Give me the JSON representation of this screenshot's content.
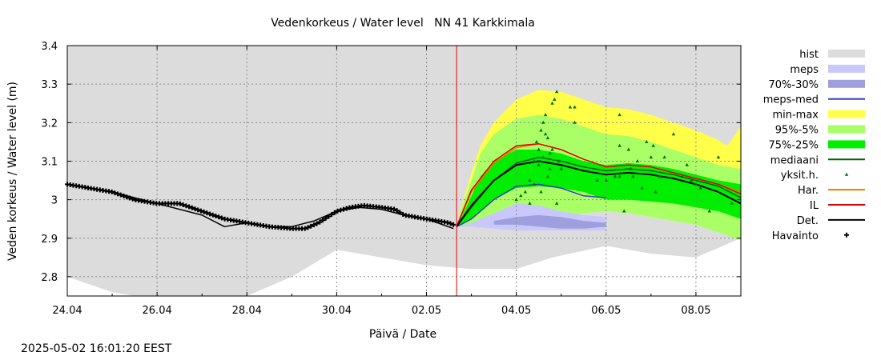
{
  "chart_data": {
    "type": "line",
    "title": "Vedenkorkeus / Water level   NN 41 Karkkimala",
    "xlabel": "Päivä / Date",
    "ylabel": "Veden korkeus / Water level (m)",
    "ylim": [
      2.75,
      3.4
    ],
    "yticks": [
      "2.8",
      "2.9",
      "3",
      "3.1",
      "3.2",
      "3.3",
      "3.4"
    ],
    "xlim": [
      "2025-04-24",
      "2025-05-09"
    ],
    "xticks": [
      "24.04",
      "26.04",
      "28.04",
      "30.04",
      "02.05",
      "04.05",
      "06.05",
      "08.05"
    ],
    "grid": true,
    "legend_position": "right",
    "forecast_start": "2025-05-02 16:00",
    "legend": [
      {
        "key": "hist",
        "label": "hist",
        "color": "#dcdcdc",
        "kind": "box"
      },
      {
        "key": "meps",
        "label": "meps",
        "color": "#c8c8fa",
        "kind": "box"
      },
      {
        "key": "meps7030",
        "label": "70%-30%",
        "color": "#9f9fe0",
        "kind": "box"
      },
      {
        "key": "mepsmed",
        "label": "meps-med",
        "color": "#3a3ac8",
        "kind": "line"
      },
      {
        "key": "minmax",
        "label": "min-max",
        "color": "#ffff4a",
        "kind": "box"
      },
      {
        "key": "p955",
        "label": "95%-5%",
        "color": "#aaff66",
        "kind": "box"
      },
      {
        "key": "p7525",
        "label": "75%-25%",
        "color": "#00ee00",
        "kind": "box"
      },
      {
        "key": "mediaani",
        "label": "mediaani",
        "color": "#006400",
        "kind": "line"
      },
      {
        "key": "yksit",
        "label": "yksit.h.",
        "color": "#007000",
        "kind": "tri"
      },
      {
        "key": "har",
        "label": "Har.",
        "color": "#e67e00",
        "kind": "line"
      },
      {
        "key": "il",
        "label": "IL",
        "color": "#e00000",
        "kind": "line"
      },
      {
        "key": "det",
        "label": "Det.",
        "color": "#000000",
        "kind": "line"
      },
      {
        "key": "havainto",
        "label": "Havainto",
        "color": "#000000",
        "kind": "plus"
      }
    ],
    "series": {
      "hist_lower": {
        "x": [
          0,
          1,
          1.5,
          2.5,
          3,
          4,
          5,
          6,
          6.5,
          7,
          8,
          9,
          10,
          10.8,
          12,
          13,
          14,
          15
        ],
        "y": [
          2.8,
          2.76,
          2.75,
          2.75,
          2.75,
          2.75,
          2.8,
          2.87,
          2.86,
          2.85,
          2.83,
          2.82,
          2.82,
          2.85,
          2.88,
          2.86,
          2.85,
          2.9
        ]
      },
      "observation": {
        "x": [
          0,
          0.5,
          1,
          1.5,
          2,
          2.5,
          3,
          3.5,
          4,
          4.5,
          5,
          5.3,
          5.6,
          6,
          6.3,
          6.6,
          7,
          7.3,
          7.5,
          8,
          8.5,
          8.6
        ],
        "y": [
          3.04,
          3.03,
          3.02,
          3.0,
          2.99,
          2.99,
          2.97,
          2.95,
          2.94,
          2.93,
          2.925,
          2.925,
          2.94,
          2.97,
          2.98,
          2.985,
          2.98,
          2.975,
          2.96,
          2.95,
          2.94,
          2.935
        ]
      },
      "det_hind": {
        "x": [
          0,
          1,
          2,
          3,
          3.5,
          4,
          4.5,
          5,
          5.5,
          6,
          6.5,
          7,
          7.5,
          8,
          8.6
        ],
        "y": [
          3.04,
          3.02,
          2.99,
          2.96,
          2.93,
          2.94,
          2.93,
          2.93,
          2.945,
          2.97,
          2.98,
          2.975,
          2.96,
          2.95,
          2.925
        ]
      },
      "minmax": {
        "x": [
          8.67,
          8.8,
          9,
          9.2,
          9.5,
          10,
          10.5,
          11,
          11.5,
          12,
          12.5,
          13,
          13.5,
          14,
          14.5,
          14.7,
          15
        ],
        "upper": [
          2.93,
          2.99,
          3.07,
          3.14,
          3.2,
          3.26,
          3.285,
          3.28,
          3.26,
          3.24,
          3.235,
          3.22,
          3.2,
          3.18,
          3.155,
          3.14,
          3.19
        ],
        "lower": [
          2.93,
          2.93,
          2.93,
          2.93,
          2.935,
          2.945,
          2.945,
          2.955,
          2.965,
          2.97,
          2.965,
          2.955,
          2.945,
          2.935,
          2.92,
          2.915,
          2.9
        ]
      },
      "p955": {
        "x": [
          8.67,
          8.8,
          9,
          9.2,
          9.5,
          10,
          10.5,
          11,
          11.5,
          12,
          12.5,
          13,
          13.5,
          14,
          14.5,
          15
        ],
        "upper": [
          2.93,
          2.985,
          3.05,
          3.12,
          3.17,
          3.21,
          3.22,
          3.21,
          3.19,
          3.17,
          3.165,
          3.15,
          3.13,
          3.11,
          3.09,
          3.08
        ],
        "lower": [
          2.93,
          2.93,
          2.93,
          2.93,
          2.935,
          2.945,
          2.945,
          2.955,
          2.965,
          2.97,
          2.965,
          2.955,
          2.945,
          2.935,
          2.915,
          2.895
        ]
      },
      "p7525": {
        "x": [
          8.67,
          8.8,
          9,
          9.2,
          9.5,
          10,
          10.5,
          11,
          11.5,
          12,
          12.5,
          13,
          13.5,
          14,
          14.5,
          15
        ],
        "upper": [
          2.93,
          2.96,
          3.01,
          3.06,
          3.1,
          3.13,
          3.13,
          3.12,
          3.1,
          3.09,
          3.095,
          3.09,
          3.08,
          3.065,
          3.05,
          3.04
        ],
        "lower": [
          2.93,
          2.935,
          2.95,
          2.97,
          3.0,
          3.03,
          3.035,
          3.03,
          3.02,
          3.0,
          3.0,
          2.995,
          2.99,
          2.98,
          2.97,
          2.95
        ]
      },
      "meps": {
        "x": [
          8.67,
          9,
          9.5,
          10,
          10.5,
          11,
          11.5,
          12.0
        ],
        "upper": [
          2.93,
          2.94,
          2.965,
          2.99,
          2.985,
          2.97,
          2.96,
          2.955
        ],
        "lower": [
          2.93,
          2.93,
          2.925,
          2.92,
          2.92,
          2.92,
          2.92,
          2.92
        ]
      },
      "meps7030": {
        "x": [
          9.5,
          10,
          10.5,
          11,
          11.5,
          12.0
        ],
        "upper": [
          2.945,
          2.955,
          2.96,
          2.955,
          2.945,
          2.94
        ],
        "lower": [
          2.935,
          2.935,
          2.93,
          2.925,
          2.925,
          2.93
        ]
      },
      "mepsmed": {
        "x": [
          8.67,
          9,
          9.5,
          10,
          10.5,
          11,
          11.5,
          12.0
        ],
        "y": [
          2.93,
          2.95,
          3.0,
          3.035,
          3.04,
          3.03,
          3.01,
          3.005
        ]
      },
      "mediaani": {
        "x": [
          8.67,
          9,
          9.5,
          10,
          10.5,
          11,
          11.5,
          12,
          12.5,
          13,
          13.5,
          14,
          14.5,
          15
        ],
        "y": [
          2.93,
          2.98,
          3.05,
          3.095,
          3.11,
          3.1,
          3.085,
          3.075,
          3.08,
          3.075,
          3.065,
          3.05,
          3.035,
          3.005
        ]
      },
      "har": {
        "x": [
          8.67,
          9,
          9.5,
          10,
          10.5,
          11,
          11.5,
          12,
          12.5,
          13,
          13.5,
          14,
          14.5,
          15
        ],
        "y": [
          2.93,
          3.02,
          3.095,
          3.135,
          3.145,
          3.13,
          3.105,
          3.085,
          3.09,
          3.085,
          3.07,
          3.055,
          3.04,
          3.02
        ]
      },
      "il": {
        "x": [
          8.67,
          9,
          9.5,
          10,
          10.5,
          11,
          11.5,
          12,
          12.5,
          13,
          13.5,
          14,
          14.5,
          15
        ],
        "y": [
          2.93,
          3.025,
          3.1,
          3.14,
          3.145,
          3.13,
          3.105,
          3.085,
          3.09,
          3.085,
          3.07,
          3.055,
          3.04,
          3.015
        ]
      },
      "det": {
        "x": [
          8.67,
          9,
          9.5,
          10,
          10.5,
          11,
          11.5,
          12,
          12.5,
          13,
          13.5,
          14,
          14.5,
          15
        ],
        "y": [
          2.93,
          2.985,
          3.05,
          3.09,
          3.1,
          3.09,
          3.075,
          3.065,
          3.07,
          3.065,
          3.055,
          3.04,
          3.02,
          2.99
        ]
      },
      "yksit": {
        "x": [
          10.0,
          10.1,
          10.2,
          10.3,
          10.4,
          10.45,
          10.5,
          10.55,
          10.6,
          10.65,
          10.7,
          10.75,
          10.8,
          10.85,
          10.9,
          10.95,
          11.0,
          11.2,
          11.3,
          10.3,
          10.4,
          10.5,
          10.6,
          10.7,
          10.8,
          10.9,
          11.3,
          12.2,
          12.3,
          12.4,
          12.6,
          12.8,
          13.0,
          13.3,
          13.5,
          13.7,
          13.9,
          14.1,
          14.5,
          14.8,
          12.3,
          12.5,
          13.2,
          13.8,
          14.0,
          14.3,
          10.55,
          10.65,
          10.75,
          12.0,
          12.3,
          11.8,
          13.1,
          12.55,
          13.05,
          12.7,
          12.9
        ],
        "y": [
          3.0,
          3.01,
          3.02,
          3.05,
          3.1,
          3.15,
          3.13,
          3.18,
          3.2,
          3.22,
          3.16,
          3.12,
          3.25,
          3.26,
          3.28,
          3.1,
          3.08,
          3.24,
          3.24,
          2.99,
          3.04,
          3.09,
          3.11,
          3.06,
          3.13,
          2.99,
          3.2,
          3.06,
          3.06,
          2.97,
          3.06,
          3.03,
          3.11,
          3.11,
          3.17,
          3.06,
          3.05,
          3.03,
          3.11,
          2.99,
          3.22,
          3.13,
          3.06,
          3.09,
          3.04,
          2.97,
          3.02,
          3.17,
          3.08,
          3.05,
          3.14,
          3.05,
          3.02,
          3.08,
          3.14,
          3.1,
          3.15
        ]
      }
    }
  },
  "timestamp": "2025-05-02 16:01:20 EEST"
}
